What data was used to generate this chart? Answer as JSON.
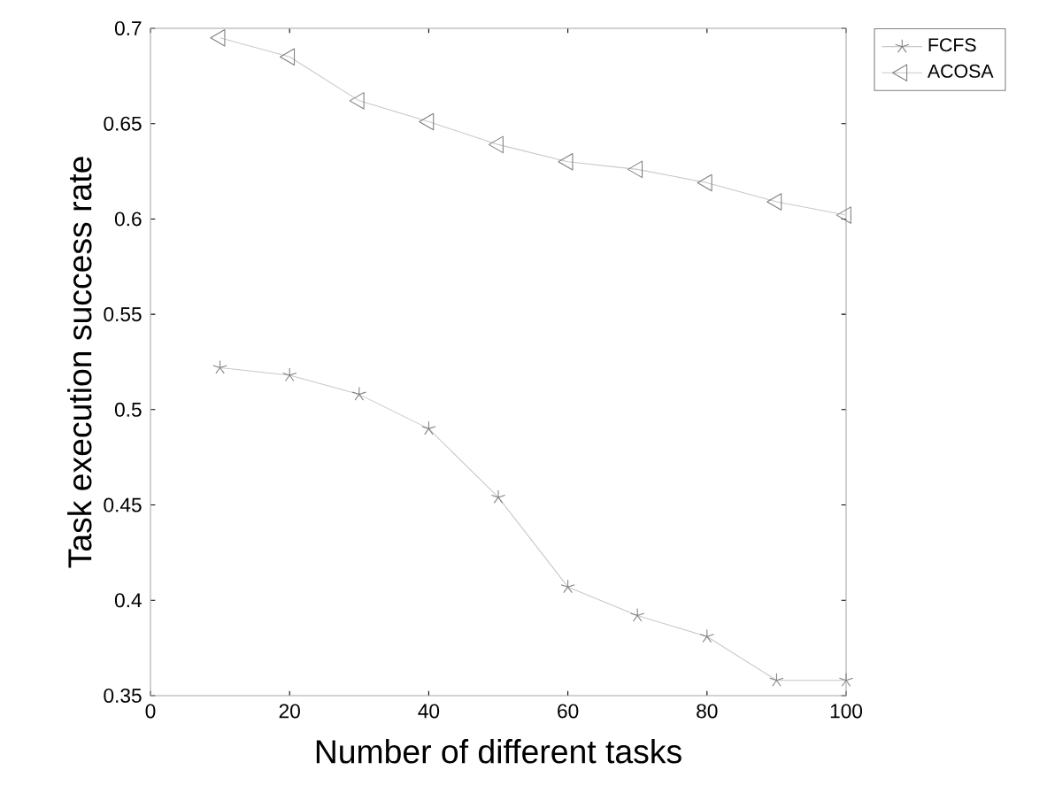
{
  "chart_data": {
    "type": "line",
    "xlabel": "Number of different tasks",
    "ylabel": "Task execution success rate",
    "x": [
      10,
      20,
      30,
      40,
      50,
      60,
      70,
      80,
      90,
      100
    ],
    "series": [
      {
        "name": "FCFS",
        "color": "#c8c8c8",
        "marker": "cross",
        "values": [
          0.522,
          0.518,
          0.508,
          0.49,
          0.454,
          0.407,
          0.392,
          0.381,
          0.358,
          0.358
        ]
      },
      {
        "name": "ACOSA",
        "color": "#c8c8c8",
        "marker": "triangle",
        "values": [
          0.695,
          0.685,
          0.662,
          0.651,
          0.639,
          0.63,
          0.626,
          0.619,
          0.609,
          0.602
        ]
      }
    ],
    "xlim": [
      0,
      100
    ],
    "ylim": [
      0.35,
      0.7
    ],
    "xticks": [
      0,
      20,
      40,
      60,
      80,
      100
    ],
    "yticks": [
      0.35,
      0.4,
      0.45,
      0.5,
      0.55,
      0.6,
      0.65,
      0.7
    ],
    "grid": false,
    "legend": "top right",
    "line_style": "solid"
  }
}
